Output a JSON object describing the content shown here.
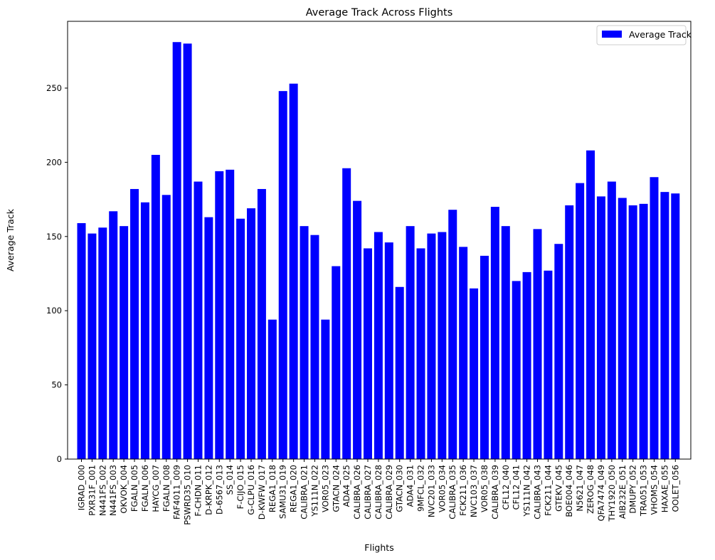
{
  "chart_data": {
    "type": "bar",
    "title": "Average Track Across Flights",
    "xlabel": "Flights",
    "ylabel": "Average Track",
    "ylim": [
      0,
      295
    ],
    "yticks": [
      0,
      50,
      100,
      150,
      200,
      250
    ],
    "legend": {
      "label": "Average Track",
      "placement": "top-right"
    },
    "color": "#0000ff",
    "grid": false,
    "categories": [
      "IGRAD_000",
      "PXR31F_001",
      "N441FS_002",
      "N441FS_003",
      "OKVOK_004",
      "FGALN_005",
      "FGALN_006",
      "HAYCG_007",
      "FGALN_008",
      "FAF4011_009",
      "PSWRD35_010",
      "F-CHDN_011",
      "D-KRPK_012",
      "D-6567_013",
      "SS_014",
      "F-CIJO_015",
      "G-CLPU_016",
      "D-KWFW_017",
      "REGA1_018",
      "SAMU31_019",
      "REGA1_020",
      "CALIBRA_021",
      "YS111N_022",
      "VOR05_023",
      "GTACN_024",
      "ADA4_025",
      "CALIBRA_026",
      "CALIBRA_027",
      "CALIBRA_028",
      "CALIBRA_029",
      "GTACN_030",
      "ADA4_031",
      "9MFCL_032",
      "NVC201_033",
      "VOR05_034",
      "CALIBRA_035",
      "FCK211_036",
      "NVC103_037",
      "VOR05_038",
      "CALIBRA_039",
      "CFL12_040",
      "CFL12_041",
      "YS111N_042",
      "CALIBRA_043",
      "FCK211_044",
      "GTEKV_045",
      "BOE004_046",
      "N5621_047",
      "ZEROG_048",
      "QFA7474_049",
      "THY1920_050",
      "AIB232E_051",
      "DMUPY_052",
      "TRA051_053",
      "VHOMS_054",
      "HAXAE_055",
      "OOLET_056"
    ],
    "values": [
      159,
      152,
      156,
      167,
      157,
      182,
      173,
      205,
      178,
      281,
      280,
      187,
      163,
      194,
      195,
      162,
      169,
      182,
      94,
      248,
      253,
      157,
      151,
      94,
      130,
      196,
      174,
      142,
      153,
      146,
      116,
      157,
      142,
      152,
      153,
      168,
      143,
      115,
      137,
      170,
      157,
      120,
      126,
      155,
      127,
      145,
      171,
      186,
      208,
      177,
      187,
      176,
      171,
      172,
      190,
      180,
      179
    ]
  }
}
